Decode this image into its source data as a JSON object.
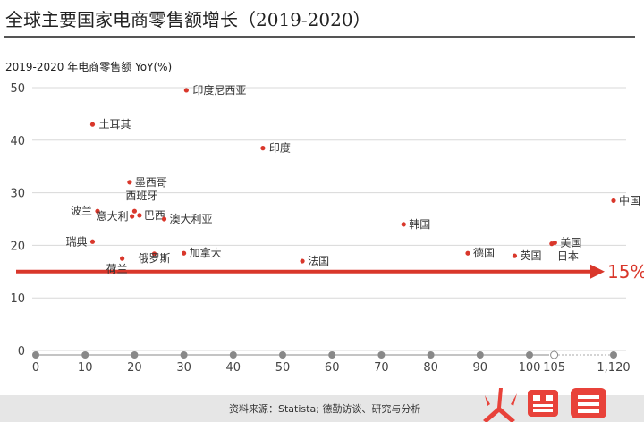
{
  "title": "全球主要国家电商零售额增长（2019-2020）",
  "source": "资料来源：Statista; 德勤访谈、研究与分析",
  "logo_text": "火鲤鱼",
  "threshold_label": "15%",
  "colors": {
    "point": "#d9372b",
    "threshold": "#d9372b",
    "axis_dot": "#888888",
    "footer": "#e6e6e6"
  },
  "chart_data": {
    "type": "scatter",
    "ylabel": "2019-2020 年电商零售额 YoY(%)",
    "xlabel": "",
    "x_ticks": [
      "0",
      "10",
      "20",
      "30",
      "40",
      "50",
      "60",
      "70",
      "80",
      "90",
      "100",
      "105",
      "1,120"
    ],
    "y_ticks": [
      "0",
      "10",
      "20",
      "30",
      "40",
      "50"
    ],
    "xlim": [
      0,
      1120
    ],
    "ylim": [
      0,
      50
    ],
    "x_axis_break": [
      105,
      1120
    ],
    "threshold": 15,
    "points": [
      {
        "label": "印度尼西亚",
        "x": 30.5,
        "y": 49.5
      },
      {
        "label": "土耳其",
        "x": 11.5,
        "y": 43
      },
      {
        "label": "印度",
        "x": 46,
        "y": 38.5
      },
      {
        "label": "墨西哥",
        "x": 19,
        "y": 32
      },
      {
        "label": "西班牙",
        "x": 20,
        "y": 26.5
      },
      {
        "label": "波兰",
        "x": 12.5,
        "y": 26.5
      },
      {
        "label": "意大利",
        "x": 19.5,
        "y": 25.5
      },
      {
        "label": "巴西",
        "x": 21,
        "y": 25.7
      },
      {
        "label": "澳大利亚",
        "x": 26,
        "y": 25
      },
      {
        "label": "中国",
        "x": 1120,
        "y": 28.5
      },
      {
        "label": "韩国",
        "x": 74.5,
        "y": 24
      },
      {
        "label": "美国",
        "x": 110,
        "y": 20.5
      },
      {
        "label": "日本",
        "x": 104.5,
        "y": 20.3
      },
      {
        "label": "瑞典",
        "x": 11.5,
        "y": 20.7
      },
      {
        "label": "德国",
        "x": 87.5,
        "y": 18.5
      },
      {
        "label": "英国",
        "x": 97,
        "y": 18
      },
      {
        "label": "加拿大",
        "x": 30,
        "y": 18.5
      },
      {
        "label": "俄罗斯",
        "x": 24,
        "y": 18.4
      },
      {
        "label": "荷兰",
        "x": 17.5,
        "y": 17.5
      },
      {
        "label": "法国",
        "x": 54,
        "y": 17
      }
    ]
  }
}
